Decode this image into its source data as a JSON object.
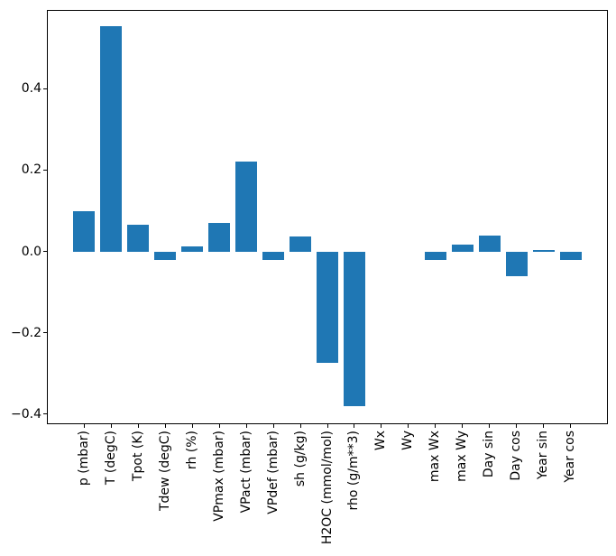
{
  "chart_data": {
    "type": "bar",
    "title": "",
    "xlabel": "",
    "ylabel": "",
    "grid": false,
    "legend": null,
    "bar_color": "#1f77b4",
    "frame_color": "#000000",
    "background_color": "#ffffff",
    "categories": [
      "p (mbar)",
      "T (degC)",
      "Tpot (K)",
      "Tdew (degC)",
      "rh (%)",
      "VPmax (mbar)",
      "VPact (mbar)",
      "VPdef (mbar)",
      "sh (g/kg)",
      "H2OC (mmol/mol)",
      "rho (g/m**3)",
      "Wx",
      "Wy",
      "max Wx",
      "max Wy",
      "Day sin",
      "Day cos",
      "Year sin",
      "Year cos"
    ],
    "values": [
      0.1,
      0.555,
      0.065,
      -0.02,
      0.013,
      0.07,
      0.22,
      -0.022,
      0.036,
      -0.274,
      -0.381,
      0.0,
      0.0,
      -0.02,
      0.016,
      0.04,
      -0.061,
      0.004,
      -0.02
    ],
    "bar_width_fraction": 0.8,
    "ylim": [
      -0.423,
      0.592
    ],
    "xlim": [
      -1.34,
      19.34
    ],
    "yticks": [
      {
        "value": 0.4,
        "label": "0.4"
      },
      {
        "value": 0.2,
        "label": "0.2"
      },
      {
        "value": 0.0,
        "label": "0.0"
      },
      {
        "value": -0.2,
        "label": "−0.2"
      },
      {
        "value": -0.4,
        "label": "−0.4"
      }
    ]
  }
}
